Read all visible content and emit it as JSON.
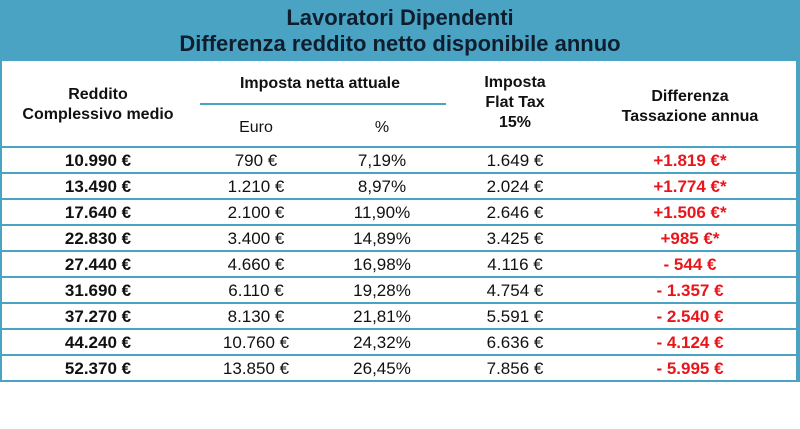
{
  "title_line1": "Lavoratori Dipendenti",
  "title_line2": "Differenza reddito netto disponibile annuo",
  "headers": {
    "income_l1": "Reddito",
    "income_l2": "Complessivo medio",
    "current_tax": "Imposta netta attuale",
    "euro": "Euro",
    "percent": "%",
    "flat_l1": "Imposta",
    "flat_l2": "Flat Tax",
    "flat_l3": "15%",
    "diff_l1": "Differenza",
    "diff_l2": "Tassazione annua"
  },
  "rows": [
    {
      "income": "10.990 €",
      "euro": "790 €",
      "pct": "7,19%",
      "flat": "1.649 €",
      "diff": "+1.819 €*"
    },
    {
      "income": "13.490 €",
      "euro": "1.210 €",
      "pct": "8,97%",
      "flat": "2.024 €",
      "diff": "+1.774 €*"
    },
    {
      "income": "17.640 €",
      "euro": "2.100 €",
      "pct": "11,90%",
      "flat": "2.646 €",
      "diff": "+1.506 €*"
    },
    {
      "income": "22.830 €",
      "euro": "3.400 €",
      "pct": "14,89%",
      "flat": "3.425 €",
      "diff": "+985 €*"
    },
    {
      "income": "27.440 €",
      "euro": "4.660 €",
      "pct": "16,98%",
      "flat": "4.116 €",
      "diff": "- 544 €"
    },
    {
      "income": "31.690 €",
      "euro": "6.110 €",
      "pct": "19,28%",
      "flat": "4.754 €",
      "diff": "- 1.357 €"
    },
    {
      "income": "37.270 €",
      "euro": "8.130 €",
      "pct": "21,81%",
      "flat": "5.591 €",
      "diff": "- 2.540 €"
    },
    {
      "income": "44.240 €",
      "euro": "10.760 €",
      "pct": "24,32%",
      "flat": "6.636 €",
      "diff": "- 4.124 €"
    },
    {
      "income": "52.370 €",
      "euro": "13.850 €",
      "pct": "26,45%",
      "flat": "7.856 €",
      "diff": "- 5.995 €"
    }
  ],
  "colors": {
    "accent": "#4aa3c2",
    "negative_text": "#e8161b"
  }
}
